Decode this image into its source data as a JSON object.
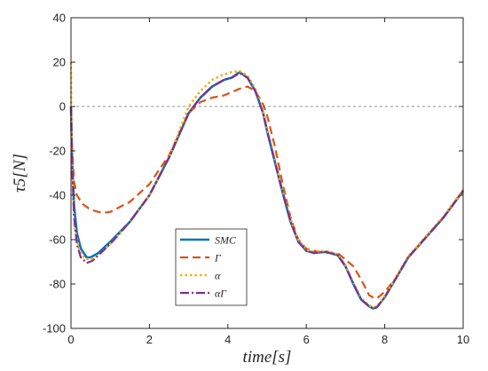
{
  "chart_data": {
    "type": "line",
    "xlabel": "time[s]",
    "ylabel": "τ5[N]",
    "xlim": [
      0,
      10
    ],
    "ylim": [
      -100,
      40
    ],
    "xticks": [
      0,
      2,
      4,
      6,
      8,
      10
    ],
    "yticks": [
      -100,
      -80,
      -60,
      -40,
      -20,
      0,
      20,
      40
    ],
    "grid": false,
    "reference_line": {
      "y": 0,
      "style": "dashed",
      "color": "#8c8c8c"
    },
    "legend_position": "lower-center",
    "series": [
      {
        "name": "SMC",
        "color": "#0072BD",
        "dash": "solid",
        "width": 2.6,
        "x": [
          0,
          0.03,
          0.08,
          0.15,
          0.25,
          0.4,
          0.5,
          0.7,
          1.0,
          1.5,
          2.0,
          2.5,
          3.0,
          3.3,
          3.6,
          3.9,
          4.1,
          4.3,
          4.5,
          4.7,
          4.9,
          5.0,
          5.2,
          5.4,
          5.6,
          5.8,
          6.0,
          6.2,
          6.5,
          6.8,
          7.0,
          7.2,
          7.4,
          7.6,
          7.7,
          7.8,
          8.0,
          8.3,
          8.6,
          9.0,
          9.5,
          10.0
        ],
        "y": [
          0,
          -25,
          -45,
          -57,
          -64,
          -68,
          -68,
          -66,
          -61,
          -52,
          -40,
          -23,
          -3,
          4,
          9,
          12,
          13,
          15.5,
          13,
          7,
          -3,
          -11,
          -25,
          -39,
          -52,
          -61,
          -65,
          -66,
          -65.5,
          -67,
          -72,
          -80,
          -87,
          -90,
          -91,
          -90.5,
          -86,
          -77,
          -68,
          -60,
          -50,
          -38
        ]
      },
      {
        "name": "Γ",
        "color": "#D95319",
        "dash": "9,5",
        "width": 2.2,
        "x": [
          0,
          0.03,
          0.08,
          0.15,
          0.3,
          0.5,
          0.8,
          1.0,
          1.5,
          2.0,
          2.5,
          3.0,
          3.3,
          3.6,
          3.9,
          4.1,
          4.3,
          4.5,
          4.7,
          4.9,
          5.0,
          5.2,
          5.4,
          5.6,
          5.8,
          6.0,
          6.2,
          6.5,
          6.8,
          7.0,
          7.2,
          7.4,
          7.6,
          7.7,
          7.8,
          8.0,
          8.3,
          8.6,
          9.0,
          9.5,
          10.0
        ],
        "y": [
          0,
          -20,
          -34,
          -40,
          -44,
          -46.5,
          -48,
          -47.5,
          -43,
          -35,
          -22,
          -3,
          2,
          4,
          5,
          6.5,
          8,
          9,
          7,
          1,
          -4,
          -18,
          -35,
          -50,
          -60,
          -64,
          -65,
          -66,
          -66,
          -69,
          -72,
          -78,
          -85,
          -86,
          -86.5,
          -83.5,
          -77,
          -68,
          -60,
          -50,
          -38
        ]
      },
      {
        "name": "α",
        "color": "#EDB120",
        "dash": "2.5,3",
        "width": 2.6,
        "x": [
          0,
          0.005,
          0.02,
          0.05,
          0.1,
          0.2,
          0.35,
          0.5,
          0.7,
          1.0,
          1.5,
          2.0,
          2.5,
          3.0,
          3.3,
          3.6,
          3.9,
          4.1,
          4.3,
          4.5,
          4.7,
          4.9,
          5.0,
          5.2,
          5.4,
          5.6,
          5.8,
          6.0,
          6.2,
          6.5,
          6.8,
          7.0,
          7.2,
          7.4,
          7.6,
          7.7,
          7.8,
          8.0,
          8.3,
          8.6,
          9.0,
          9.5,
          10.0
        ],
        "y": [
          20,
          5,
          -20,
          -40,
          -55,
          -64,
          -68.5,
          -69,
          -67,
          -62,
          -52,
          -40,
          -23,
          0,
          7,
          12,
          14.5,
          15.5,
          16,
          14,
          8,
          -2,
          -10,
          -24,
          -38,
          -51,
          -60,
          -64.5,
          -65.5,
          -65,
          -66.5,
          -71.5,
          -79.5,
          -86.5,
          -89.5,
          -90.5,
          -90,
          -85.5,
          -76.5,
          -67.5,
          -59.5,
          -49.5,
          -37.5
        ]
      },
      {
        "name": "αΓ",
        "color": "#7E2F8E",
        "dash": "10,3,2,3",
        "width": 2.2,
        "x": [
          0,
          0.03,
          0.08,
          0.15,
          0.25,
          0.4,
          0.55,
          0.7,
          1.0,
          1.5,
          2.0,
          2.5,
          3.0,
          3.3,
          3.6,
          3.9,
          4.1,
          4.3,
          4.5,
          4.7,
          4.9,
          5.0,
          5.2,
          5.4,
          5.6,
          5.8,
          6.0,
          6.2,
          6.5,
          6.8,
          7.0,
          7.2,
          7.4,
          7.6,
          7.7,
          7.8,
          8.0,
          8.3,
          8.6,
          9.0,
          9.5,
          10.0
        ],
        "y": [
          0,
          -28,
          -50,
          -62,
          -68,
          -70.5,
          -69.5,
          -67,
          -62,
          -52,
          -40,
          -23,
          -3,
          4,
          9,
          12,
          13,
          15,
          13,
          7,
          -3,
          -11,
          -25,
          -39,
          -52,
          -61,
          -65,
          -66,
          -65.5,
          -67,
          -72,
          -80,
          -87,
          -90,
          -91,
          -90.5,
          -86,
          -77,
          -68,
          -60,
          -50,
          -38
        ]
      }
    ]
  }
}
